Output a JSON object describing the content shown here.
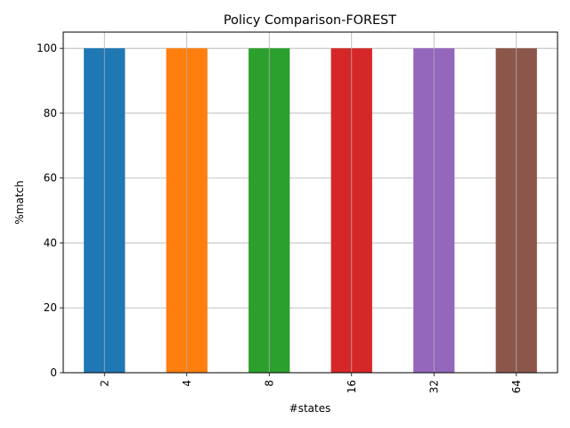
{
  "chart_data": {
    "type": "bar",
    "title": "Policy Comparison-FOREST",
    "xlabel": "#states",
    "ylabel": "%match",
    "categories": [
      "2",
      "4",
      "8",
      "16",
      "32",
      "64"
    ],
    "values": [
      100,
      100,
      100,
      100,
      100,
      100
    ],
    "ylim": [
      0,
      105
    ],
    "yticks": [
      0,
      20,
      40,
      60,
      80,
      100
    ],
    "colors": [
      "#1f77b4",
      "#ff7f0e",
      "#2ca02c",
      "#d62728",
      "#9467bd",
      "#8c564b"
    ],
    "grid": true,
    "legend": "none"
  }
}
